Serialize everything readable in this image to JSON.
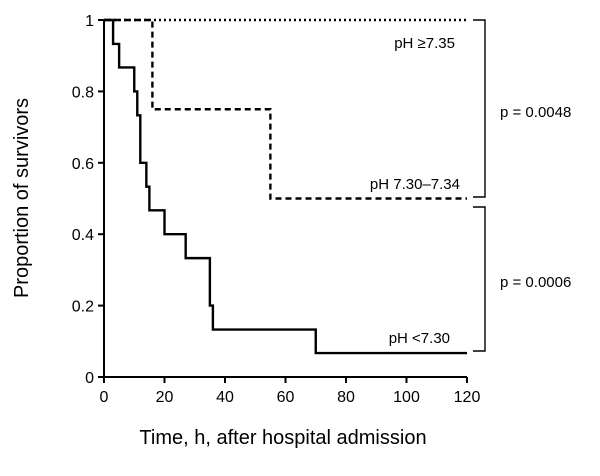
{
  "chart_data": {
    "type": "line",
    "step": true,
    "xlabel": "Time, h, after hospital admission",
    "ylabel": "Proportion of survivors",
    "xlim": [
      0,
      120
    ],
    "ylim": [
      0,
      1
    ],
    "x_ticks": [
      0,
      20,
      40,
      60,
      80,
      100,
      120
    ],
    "y_ticks": [
      0,
      0.2,
      0.4,
      0.6,
      0.8,
      1
    ],
    "x_tick_labels": [
      "0",
      "20",
      "40",
      "60",
      "80",
      "100",
      "120"
    ],
    "y_tick_labels": [
      "0",
      "0.2",
      "0.4",
      "0.6",
      "0.8",
      "1"
    ],
    "grid": false,
    "series": [
      {
        "name": "pH ≥7.35",
        "dash": "dotted",
        "points": [
          [
            0,
            1
          ],
          [
            120,
            1
          ]
        ]
      },
      {
        "name": "pH 7.30–7.34",
        "dash": "dashed",
        "points": [
          [
            0,
            1
          ],
          [
            16,
            1
          ],
          [
            16,
            0.75
          ],
          [
            55,
            0.75
          ],
          [
            55,
            0.5
          ],
          [
            120,
            0.5
          ]
        ]
      },
      {
        "name": "pH <7.30",
        "dash": "solid",
        "points": [
          [
            0,
            1
          ],
          [
            3,
            1
          ],
          [
            3,
            0.933
          ],
          [
            5,
            0.933
          ],
          [
            5,
            0.867
          ],
          [
            10,
            0.867
          ],
          [
            10,
            0.8
          ],
          [
            11,
            0.8
          ],
          [
            11,
            0.733
          ],
          [
            12,
            0.733
          ],
          [
            12,
            0.6
          ],
          [
            14,
            0.6
          ],
          [
            14,
            0.533
          ],
          [
            15,
            0.533
          ],
          [
            15,
            0.467
          ],
          [
            20,
            0.467
          ],
          [
            20,
            0.4
          ],
          [
            27,
            0.4
          ],
          [
            27,
            0.333
          ],
          [
            35,
            0.333
          ],
          [
            35,
            0.2
          ],
          [
            36,
            0.2
          ],
          [
            36,
            0.133
          ],
          [
            70,
            0.133
          ],
          [
            70,
            0.067
          ],
          [
            120,
            0.067
          ]
        ]
      }
    ],
    "comparisons": [
      {
        "label": "p = 0.0048",
        "y_range": [
          0.5,
          1
        ]
      },
      {
        "label": "p = 0.0006",
        "y_range": [
          0.067,
          0.5
        ]
      }
    ]
  }
}
